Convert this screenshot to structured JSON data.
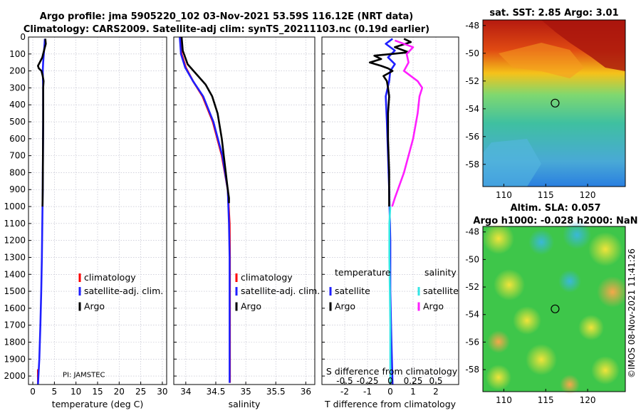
{
  "title": {
    "line1": "Argo profile: jma 5905220_102 03-Nov-2021 53.59S 116.12E (NRT data)",
    "line2": "Climatology: CARS2009. Satellite-adj clim: synTS_20211103.nc (0.19d earlier)"
  },
  "colors": {
    "climatology": "#ff0000",
    "satellite": "#1f1fff",
    "argo": "#000000",
    "sat_salinity": "#33e5e5",
    "argo_salinity": "#ff1fff"
  },
  "chart_data": [
    {
      "id": "temperature",
      "type": "line",
      "xlabel": "temperature (deg C)",
      "xlim": [
        -1,
        31
      ],
      "xticks": [
        0,
        5,
        10,
        15,
        20,
        25,
        30
      ],
      "xtick_labels": [
        "0",
        "5",
        "10",
        "15",
        "20",
        "25",
        "30"
      ],
      "ylim": [
        0,
        2050
      ],
      "yticks": [
        0,
        100,
        200,
        300,
        400,
        500,
        600,
        700,
        800,
        900,
        1000,
        1100,
        1200,
        1300,
        1400,
        1500,
        1600,
        1700,
        1800,
        1900,
        2000
      ],
      "legend": [
        "climatology",
        "satellite-adj. clim.",
        "Argo"
      ],
      "annotation": "PI: JAMSTEC",
      "series": [
        {
          "name": "climatology",
          "color": "#ff0000",
          "depth": [
            1960,
            2000,
            2040
          ],
          "values": [
            1.2,
            1.2,
            1.2
          ]
        },
        {
          "name": "satellite-adj. clim.",
          "color": "#1f1fff",
          "depth": [
            10,
            50,
            100,
            150,
            200,
            300,
            500,
            700,
            900,
            1100,
            1300,
            1500,
            1700,
            1900,
            2050
          ],
          "values": [
            2.8,
            2.7,
            2.55,
            2.4,
            2.3,
            2.4,
            2.4,
            2.35,
            2.3,
            2.2,
            2.1,
            1.95,
            1.75,
            1.5,
            1.2
          ]
        },
        {
          "name": "Argo",
          "color": "#000000",
          "depth": [
            10,
            40,
            80,
            120,
            150,
            170,
            185,
            200,
            230,
            260,
            300,
            400,
            500,
            700,
            900,
            1000
          ],
          "values": [
            2.9,
            3.0,
            2.6,
            2.2,
            1.6,
            1.2,
            1.4,
            2.0,
            2.3,
            2.5,
            2.4,
            2.4,
            2.4,
            2.35,
            2.3,
            2.25
          ]
        }
      ]
    },
    {
      "id": "salinity",
      "type": "line",
      "xlabel": "salinity",
      "xlim": [
        33.8,
        36.15
      ],
      "xticks": [
        34,
        34.5,
        35,
        35.5,
        36
      ],
      "xtick_labels": [
        "34",
        "34.5",
        "35",
        "35.5",
        "36"
      ],
      "ylim": [
        0,
        2050
      ],
      "legend": [
        "climatology",
        "satellite-adj. clim.",
        "Argo"
      ],
      "series": [
        {
          "name": "climatology",
          "color": "#ff0000",
          "depth": [
            0,
            100,
            180,
            260,
            350,
            500,
            700,
            900,
            1100,
            1300,
            1600,
            2040
          ],
          "values": [
            33.91,
            33.93,
            34.0,
            34.12,
            34.28,
            34.45,
            34.6,
            34.7,
            34.73,
            34.735,
            34.735,
            34.735
          ]
        },
        {
          "name": "satellite-adj. clim.",
          "color": "#1f1fff",
          "depth": [
            0,
            100,
            180,
            260,
            350,
            500,
            700,
            900,
            1100,
            1300,
            1600,
            2040
          ],
          "values": [
            33.9,
            33.92,
            33.99,
            34.12,
            34.29,
            34.46,
            34.61,
            34.7,
            34.72,
            34.73,
            34.73,
            34.73
          ]
        },
        {
          "name": "Argo",
          "color": "#000000",
          "depth": [
            0,
            80,
            160,
            220,
            280,
            350,
            450,
            600,
            750,
            900,
            950,
            980
          ],
          "values": [
            33.93,
            33.95,
            34.03,
            34.18,
            34.33,
            34.44,
            34.53,
            34.6,
            34.65,
            34.7,
            34.72,
            34.72
          ]
        }
      ]
    },
    {
      "id": "difference",
      "type": "line",
      "xlabel": "T difference from climatology",
      "x2label": "S difference from climatology",
      "xlim": [
        -3,
        3
      ],
      "xticks": [
        -2,
        -1,
        0,
        1,
        2
      ],
      "xtick_labels": [
        "-2",
        "-1",
        "0",
        "1",
        "2"
      ],
      "s_xticks": [
        -0.5,
        -0.25,
        0,
        0.25,
        0.5
      ],
      "s_xtick_labels": [
        "-0.5",
        "-0.25",
        "0",
        "0.25",
        "0.5"
      ],
      "legend_temperature": {
        "title": "temperature",
        "items": [
          "satellite",
          "Argo"
        ]
      },
      "legend_salinity": {
        "title": "salinity",
        "items": [
          "satellite",
          "Argo"
        ]
      },
      "series": [
        {
          "name": "T satellite",
          "color": "#1f1fff",
          "depth": [
            10,
            40,
            80,
            120,
            160,
            200,
            260,
            350,
            500,
            700,
            900,
            1200,
            1500,
            1800,
            2050
          ],
          "values": [
            0.1,
            -0.2,
            0.2,
            -0.1,
            0.2,
            0.0,
            -0.05,
            -0.2,
            -0.15,
            -0.1,
            -0.05,
            0.0,
            0.0,
            0.05,
            0.1
          ]
        },
        {
          "name": "T Argo",
          "color": "#000000",
          "depth": [
            10,
            30,
            60,
            90,
            110,
            130,
            150,
            170,
            185,
            200,
            230,
            260,
            300,
            350,
            450,
            600,
            800,
            1000
          ],
          "values": [
            0.6,
            0.9,
            0.2,
            0.8,
            -0.7,
            -0.4,
            -0.9,
            -0.4,
            -0.1,
            0.1,
            -0.3,
            -0.15,
            -0.1,
            -0.05,
            -0.1,
            -0.1,
            -0.05,
            -0.05
          ]
        },
        {
          "name": "S satellite",
          "color": "#33e5e5",
          "depth": [
            1000,
            1100,
            1300,
            1500,
            1700,
            1900,
            2050
          ],
          "values": [
            0.0,
            -0.01,
            -0.01,
            -0.005,
            0.0,
            0.0,
            0.0
          ]
        },
        {
          "name": "S Argo",
          "color": "#ff1fff",
          "depth": [
            20,
            60,
            100,
            150,
            200,
            260,
            300,
            350,
            450,
            600,
            800,
            950,
            1000
          ],
          "values": [
            0.05,
            0.25,
            0.18,
            0.2,
            0.15,
            0.3,
            0.35,
            0.32,
            0.3,
            0.25,
            0.15,
            0.05,
            0.02
          ]
        }
      ]
    },
    {
      "id": "sst_map",
      "type": "heatmap",
      "title": "sat. SST: 2.85 Argo: 3.01",
      "xticks": [
        110,
        115,
        120
      ],
      "xtick_labels": [
        "110",
        "115",
        "120"
      ],
      "yticks": [
        -48,
        -50,
        -52,
        -54,
        -56,
        -58
      ],
      "ytick_labels": [
        "-48",
        "-50",
        "-52",
        "-54",
        "-56",
        "-58"
      ],
      "xlim": [
        107.5,
        124.5
      ],
      "ylim": [
        -59.6,
        -47.6
      ],
      "marker": {
        "lon": 116.12,
        "lat": -53.59
      }
    },
    {
      "id": "sla_map",
      "type": "heatmap",
      "title_line1": "Altim. SLA: 0.057",
      "title_line2": "Argo h1000: -0.028 h2000: NaN",
      "xticks": [
        110,
        115,
        120
      ],
      "xtick_labels": [
        "110",
        "115",
        "120"
      ],
      "yticks": [
        -48,
        -50,
        -52,
        -54,
        -56,
        -58
      ],
      "ytick_labels": [
        "-48",
        "-50",
        "-52",
        "-54",
        "-56",
        "-58"
      ],
      "xlim": [
        107.5,
        124.5
      ],
      "ylim": [
        -59.6,
        -47.6
      ],
      "marker": {
        "lon": 116.12,
        "lat": -53.59
      }
    }
  ],
  "credit": "©IMOS 08-Nov-2021 11:41:26"
}
